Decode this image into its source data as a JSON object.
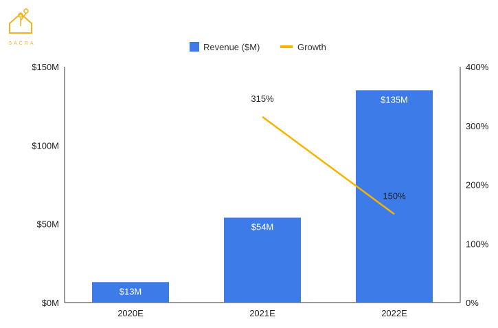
{
  "brand": {
    "name": "SACRA",
    "color": "#f0b323"
  },
  "chart_data": {
    "type": "bar",
    "categories": [
      "2020E",
      "2021E",
      "2022E"
    ],
    "series": [
      {
        "name": "Revenue ($M)",
        "type": "bar",
        "axis": "left",
        "values": [
          13,
          54,
          135
        ],
        "labels": [
          "$13M",
          "$54M",
          "$135M"
        ],
        "color": "#3d7be8"
      },
      {
        "name": "Growth",
        "type": "line",
        "axis": "right",
        "values": [
          null,
          315,
          150
        ],
        "labels": [
          "",
          "315%",
          "150%"
        ],
        "color": "#f4b400"
      }
    ],
    "y_left": {
      "min": 0,
      "max": 150,
      "ticks": [
        "$0M",
        "$50M",
        "$100M",
        "$150M"
      ],
      "tick_values": [
        0,
        50,
        100,
        150
      ]
    },
    "y_right": {
      "min": 0,
      "max": 400,
      "ticks": [
        "0%",
        "100%",
        "200%",
        "300%",
        "400%"
      ],
      "tick_values": [
        0,
        100,
        200,
        300,
        400
      ]
    },
    "legend_position": "top",
    "grid": false
  }
}
